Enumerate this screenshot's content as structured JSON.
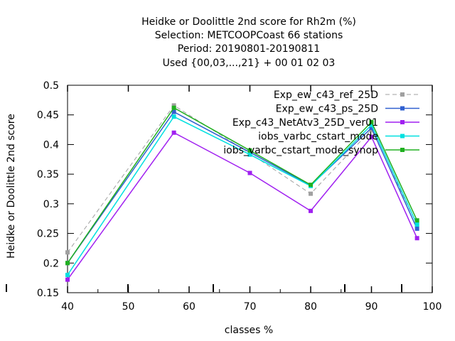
{
  "chart_data": {
    "type": "line",
    "title_lines": [
      "Heidke or Doolittle 2nd score  for Rh2m (%)",
      "Selection: METCOOPCoast     66 stations",
      "Period: 20190801-20190811",
      "Used {00,03,...,21} + 00 01 02 03"
    ],
    "xlabel": "classes %",
    "ylabel": "Heidke or Doolittle 2nd score",
    "xlim": [
      40,
      100
    ],
    "ylim": [
      0.15,
      0.5
    ],
    "xticks": [
      "40",
      "50",
      "60",
      "70",
      "80",
      "90",
      "100"
    ],
    "yticks": [
      "0.15",
      "0.2",
      "0.25",
      "0.3",
      "0.35",
      "0.4",
      "0.45",
      "0.5"
    ],
    "legend_position": "top-right",
    "grid": false,
    "x": [
      40,
      57.5,
      70,
      80,
      90,
      97.5
    ],
    "series": [
      {
        "name": "Exp_ew_c43_ref_25D",
        "color": "#a0a0a0",
        "dashed": true,
        "values": [
          0.218,
          0.466,
          0.385,
          0.317,
          0.425,
          0.265
        ]
      },
      {
        "name": "Exp_ew_c43_ps_25D",
        "color": "#3060d0",
        "dashed": false,
        "values": [
          0.2,
          0.455,
          0.387,
          0.331,
          0.428,
          0.258
        ]
      },
      {
        "name": "Exp_c43_NetAtv3_25D_ver01",
        "color": "#a020f0",
        "dashed": false,
        "values": [
          0.172,
          0.42,
          0.352,
          0.288,
          0.413,
          0.242
        ]
      },
      {
        "name": "iobs_varbc_cstart_mode",
        "color": "#00e0e0",
        "dashed": false,
        "values": [
          0.18,
          0.447,
          0.383,
          0.33,
          0.433,
          0.265
        ]
      },
      {
        "name": "iobs_varbc_cstart_mode_synop",
        "color": "#20b020",
        "dashed": false,
        "values": [
          0.2,
          0.462,
          0.39,
          0.332,
          0.438,
          0.272
        ]
      }
    ]
  }
}
